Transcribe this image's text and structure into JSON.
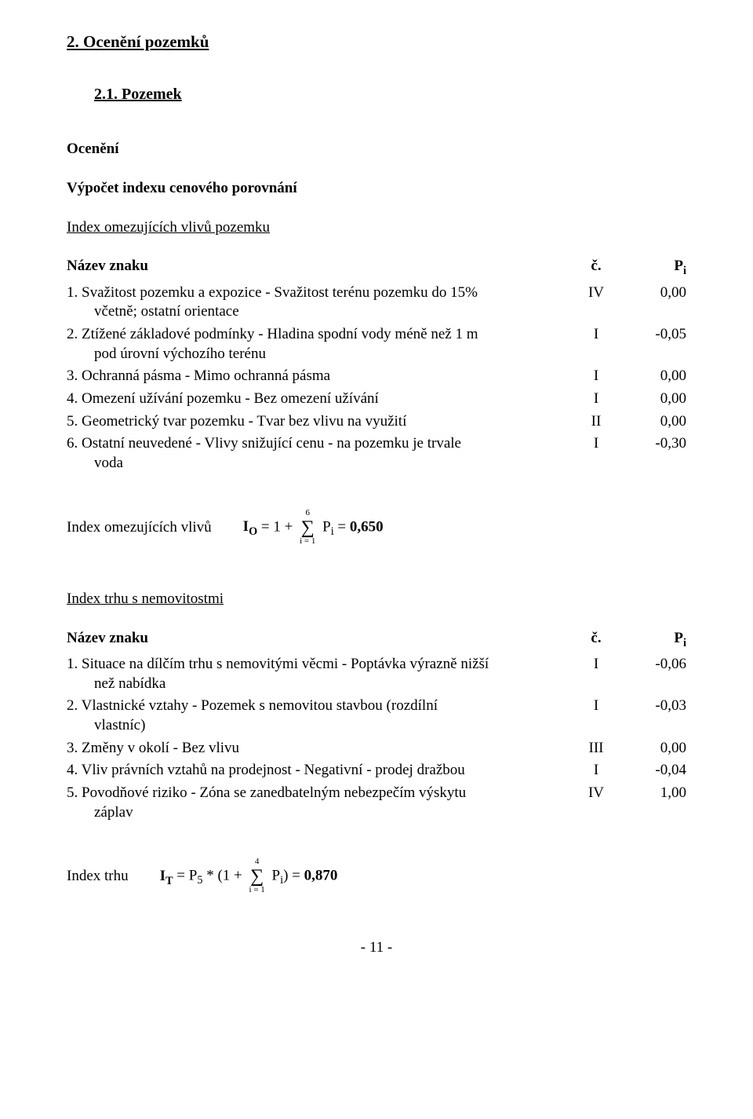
{
  "section": {
    "title": "2. Ocenění pozemků",
    "sub_title": "2.1. Pozemek",
    "ocen_label": "Ocenění",
    "calc_label": "Výpočet indexu cenového porovnání"
  },
  "table1": {
    "title": "Index omezujících vlivů pozemku",
    "header_name": "Název znaku",
    "header_c": "č.",
    "header_p_prefix": "P",
    "header_p_sub": "i",
    "rows": [
      {
        "label_line1": "1. Svažitost pozemku a expozice - Svažitost terénu pozemku do 15%",
        "label_line2": "včetně; ostatní orientace",
        "c": "IV",
        "p": "0,00"
      },
      {
        "label_line1": "2. Ztížené základové podmínky - Hladina spodní vody méně než 1 m",
        "label_line2": "pod úrovní výchozího terénu",
        "c": "I",
        "p": "-0,05"
      },
      {
        "label_line1": "3. Ochranná pásma - Mimo ochranná pásma",
        "label_line2": "",
        "c": "I",
        "p": "0,00"
      },
      {
        "label_line1": "4. Omezení užívání pozemku - Bez omezení užívání",
        "label_line2": "",
        "c": "I",
        "p": "0,00"
      },
      {
        "label_line1": "5. Geometrický tvar pozemku - Tvar bez vlivu na využití",
        "label_line2": "",
        "c": "II",
        "p": "0,00"
      },
      {
        "label_line1": "6. Ostatní neuvedené - Vlivy snižující cenu - na pozemku je trvale",
        "label_line2": "voda",
        "c": "I",
        "p": "-0,30"
      }
    ]
  },
  "formula1": {
    "lead": "Index omezujících vlivů",
    "upper": "6",
    "lower": "i = 1",
    "sym_I": "I",
    "sub_O": "O",
    "eq1": " = 1 + ",
    "sym_P": "P",
    "sub_i": "i",
    "eq2": " = ",
    "result": "0,650"
  },
  "table2": {
    "title": "Index trhu s nemovitostmi",
    "header_name": "Název znaku",
    "header_c": "č.",
    "header_p_prefix": "P",
    "header_p_sub": "i",
    "rows": [
      {
        "label_line1": "1. Situace na dílčím trhu s nemovitými věcmi - Poptávka výrazně nižší",
        "label_line2": "než nabídka",
        "c": "I",
        "p": "-0,06"
      },
      {
        "label_line1": "2. Vlastnické vztahy - Pozemek s nemovitou stavbou (rozdílní",
        "label_line2": "vlastníc)",
        "c": "I",
        "p": "-0,03"
      },
      {
        "label_line1": "3. Změny v okolí - Bez vlivu",
        "label_line2": "",
        "c": "III",
        "p": "0,00"
      },
      {
        "label_line1": "4. Vliv právních vztahů na prodejnost - Negativní - prodej dražbou",
        "label_line2": "",
        "c": "I",
        "p": "-0,04"
      },
      {
        "label_line1": "5. Povodňové riziko - Zóna se zanedbatelným nebezpečím výskytu",
        "label_line2": "záplav",
        "c": "IV",
        "p": "1,00"
      }
    ]
  },
  "formula2": {
    "lead": "Index trhu",
    "upper": "4",
    "lower": "i = 1",
    "sym_I": "I",
    "sub_T": "T",
    "eq1": " = P",
    "sub_5": "5",
    "eq2": " * (1 + ",
    "sym_P": "P",
    "sub_i": "i",
    "eq3": ") = ",
    "result": "0,870"
  },
  "footer": "- 11 -"
}
